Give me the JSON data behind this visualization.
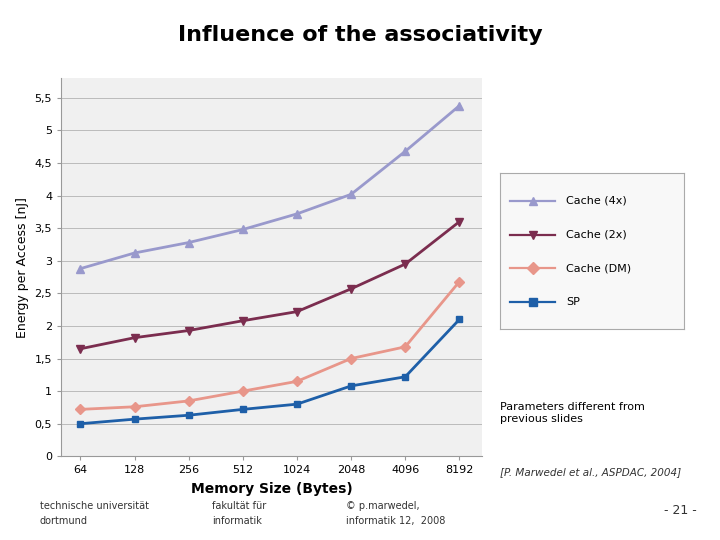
{
  "title": "Influence of the associativity",
  "xlabel": "Memory Size (Bytes)",
  "ylabel": "Energy per Access [nJ]",
  "x_labels": [
    "64",
    "128",
    "256",
    "512",
    "1024",
    "2048",
    "4096",
    "8192"
  ],
  "x_values": [
    64,
    128,
    256,
    512,
    1024,
    2048,
    4096,
    8192
  ],
  "cache_4x": [
    2.88,
    3.12,
    3.28,
    3.48,
    3.72,
    4.02,
    4.68,
    5.38
  ],
  "cache_2x": [
    1.65,
    1.82,
    1.93,
    2.08,
    2.22,
    2.57,
    2.95,
    3.6
  ],
  "cache_dm": [
    0.72,
    0.76,
    0.85,
    1.0,
    1.15,
    1.5,
    1.68,
    2.68
  ],
  "sp": [
    0.5,
    0.57,
    0.63,
    0.72,
    0.8,
    1.08,
    1.22,
    2.1
  ],
  "color_4x": "#9999cc",
  "color_2x": "#7b2d4f",
  "color_dm": "#e8968a",
  "color_sp": "#1e5fa8",
  "ylim": [
    0,
    5.8
  ],
  "yticks": [
    0,
    0.5,
    1,
    1.5,
    2,
    2.5,
    3,
    3.5,
    4,
    4.5,
    5,
    5.5
  ],
  "ytick_labels": [
    "0",
    "0,5",
    "1",
    "1,5",
    "2",
    "2,5",
    "3",
    "3,5",
    "4",
    "4,5",
    "5",
    "5,5"
  ],
  "annotation_text": "Parameters different from\nprevious slides",
  "footer_left1": "technische universität",
  "footer_left2": "dortmund",
  "footer_center1": "fakultät für",
  "footer_center2": "informatik",
  "footer_right1": "© p.marwedel,",
  "footer_right2": "informatik 12,  2008",
  "footer_page": "- 21 -",
  "ref_text": "[P. Marwedel et al., ASPDAC, 2004]",
  "line_width": 2.0,
  "marker_size": 6,
  "bg_color": "#ffffff",
  "plot_bg_color": "#f0f0f0",
  "green_bar_color": "#8db33a"
}
